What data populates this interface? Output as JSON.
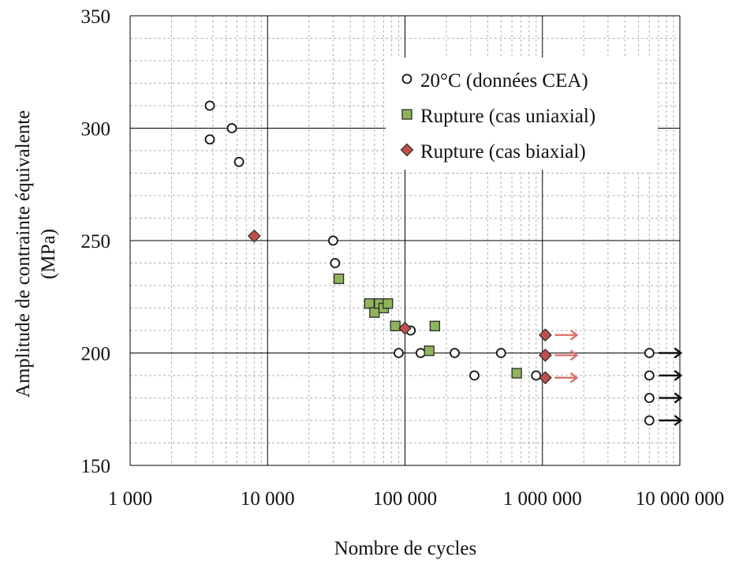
{
  "chart_data": {
    "type": "scatter",
    "xlabel": "Nombre de cycles",
    "ylabel_line1": "Amplitude de contrainte équivalente",
    "ylabel_line2": "(MPa)",
    "x_scale": "log",
    "xlim": [
      1000,
      10000000
    ],
    "ylim": [
      150,
      350
    ],
    "x_ticks": [
      1000,
      10000,
      100000,
      1000000,
      10000000
    ],
    "x_tick_labels": [
      "1 000",
      "10 000",
      "100 000",
      "1 000 000",
      "10 000 000"
    ],
    "y_ticks": [
      150,
      200,
      250,
      300,
      350
    ],
    "y_tick_labels": [
      "150",
      "200",
      "250",
      "300",
      "350"
    ],
    "grid": true,
    "legend_position": "top-right",
    "series": [
      {
        "name": "20°C (données CEA)",
        "marker": "circle",
        "color": "#ffffff",
        "points": [
          {
            "x": 3800,
            "y": 310
          },
          {
            "x": 3800,
            "y": 295
          },
          {
            "x": 5500,
            "y": 300
          },
          {
            "x": 6200,
            "y": 285
          },
          {
            "x": 30000,
            "y": 250
          },
          {
            "x": 31000,
            "y": 240
          },
          {
            "x": 90000,
            "y": 200
          },
          {
            "x": 110000,
            "y": 210
          },
          {
            "x": 130000,
            "y": 200
          },
          {
            "x": 230000,
            "y": 200
          },
          {
            "x": 320000,
            "y": 190
          },
          {
            "x": 500000,
            "y": 200
          },
          {
            "x": 900000,
            "y": 190
          },
          {
            "x": 6000000,
            "y": 200,
            "runout": true
          },
          {
            "x": 6000000,
            "y": 190,
            "runout": true
          },
          {
            "x": 6000000,
            "y": 180,
            "runout": true
          },
          {
            "x": 6000000,
            "y": 170,
            "runout": true
          }
        ]
      },
      {
        "name": "Rupture (cas uniaxial)",
        "marker": "square",
        "color": "#8fb55a",
        "points": [
          {
            "x": 33000,
            "y": 233
          },
          {
            "x": 55000,
            "y": 222
          },
          {
            "x": 60000,
            "y": 218
          },
          {
            "x": 65000,
            "y": 222
          },
          {
            "x": 70000,
            "y": 220
          },
          {
            "x": 75000,
            "y": 222
          },
          {
            "x": 85000,
            "y": 212
          },
          {
            "x": 150000,
            "y": 201
          },
          {
            "x": 165000,
            "y": 212
          },
          {
            "x": 650000,
            "y": 191
          }
        ]
      },
      {
        "name": "Rupture (cas biaxial)",
        "marker": "diamond",
        "color": "#c0504d",
        "points": [
          {
            "x": 8000,
            "y": 252
          },
          {
            "x": 100000,
            "y": 211
          },
          {
            "x": 1050000,
            "y": 208,
            "runout": true
          },
          {
            "x": 1050000,
            "y": 199,
            "runout": true
          },
          {
            "x": 1050000,
            "y": 189,
            "runout": true
          }
        ]
      }
    ]
  },
  "colors": {
    "runout_circle_arrow": "#111111",
    "runout_biaxial_arrow": "#d9706b",
    "major_grid": "#000000",
    "minor_grid": "#b0b0b0"
  }
}
